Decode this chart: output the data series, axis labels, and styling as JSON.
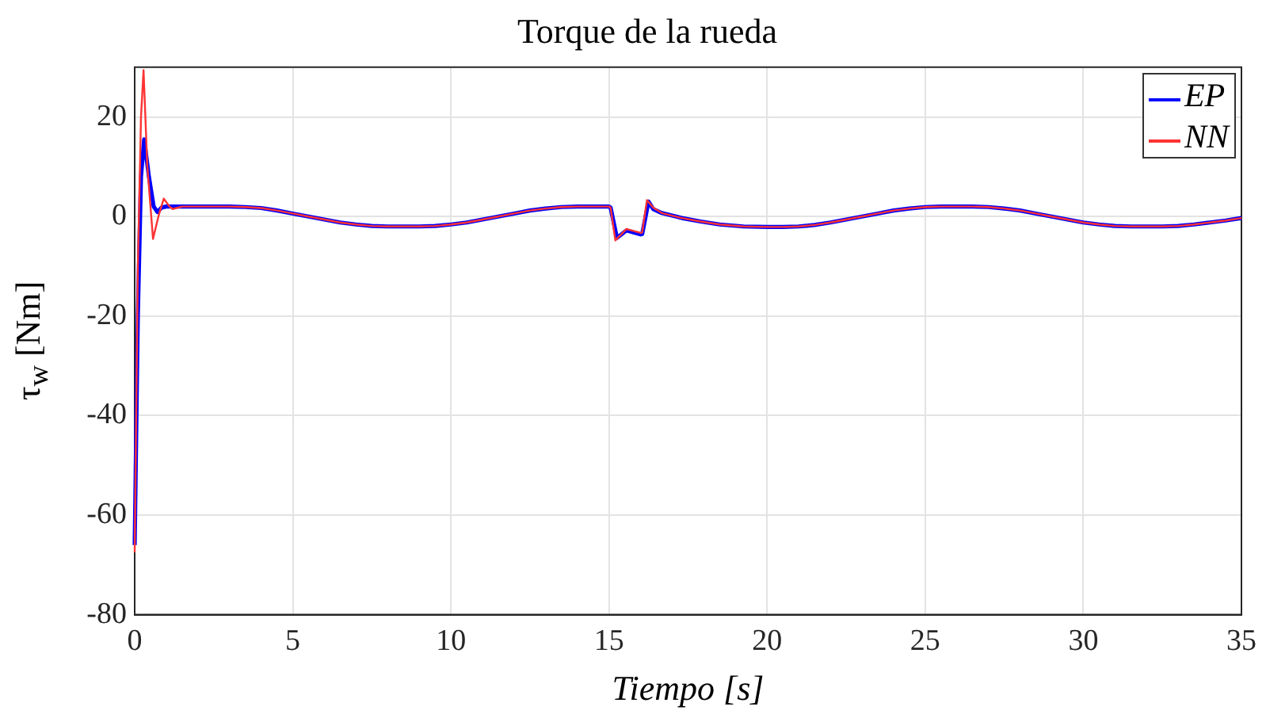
{
  "chart_data": {
    "type": "line",
    "title": "Torque de la rueda",
    "xlabel": "Tiempo [s]",
    "ylabel": "τ$_{w}$ [Nm]",
    "xlim": [
      0,
      35
    ],
    "xticks": [
      0,
      5,
      10,
      15,
      20,
      25,
      30,
      35
    ],
    "ylim": [
      -80,
      30
    ],
    "yticks": [
      -80,
      -60,
      -40,
      -20,
      0,
      20
    ],
    "grid": true,
    "legend": "top right",
    "line_style": "solid",
    "marker": "none",
    "series": [
      {
        "name": "EP",
        "color": "#0000ff",
        "x": [
          0,
          0.1,
          0.2,
          0.3,
          0.45,
          0.6,
          0.72,
          0.85,
          1,
          1.5,
          2,
          2.5,
          3,
          3.5,
          4,
          4.5,
          5,
          5.5,
          6,
          6.5,
          7,
          7.5,
          8,
          8.5,
          9,
          9.5,
          10,
          10.5,
          11,
          11.5,
          12,
          12.5,
          13,
          13.5,
          14,
          14.5,
          15,
          15.05,
          15.25,
          15.55,
          16,
          16.05,
          16.25,
          16.4,
          16.67,
          17.3,
          17.9,
          18.5,
          19.25,
          20,
          20.5,
          21,
          21.5,
          22,
          22.5,
          23,
          23.5,
          24,
          24.5,
          25,
          25.5,
          26,
          26.5,
          27,
          27.5,
          28,
          28.5,
          29,
          29.5,
          30,
          30.5,
          31,
          31.5,
          32,
          32.5,
          33,
          33.5,
          34,
          34.5,
          35
        ],
        "values": [
          -66,
          -20,
          8,
          15.5,
          8,
          2,
          0.9,
          1.8,
          2,
          2,
          2,
          2,
          2,
          1.9,
          1.7,
          1.2,
          0.6,
          0,
          -0.6,
          -1.2,
          -1.6,
          -1.9,
          -2,
          -2,
          -2,
          -1.9,
          -1.6,
          -1.2,
          -0.6,
          0,
          0.6,
          1.2,
          1.6,
          1.9,
          2,
          2,
          2,
          1.8,
          -4.3,
          -2.8,
          -3.6,
          -3.5,
          3,
          1.5,
          0.7,
          -0.3,
          -1,
          -1.6,
          -2,
          -2.1,
          -2.1,
          -2,
          -1.7,
          -1.2,
          -0.6,
          0,
          0.6,
          1.2,
          1.6,
          1.9,
          2,
          2,
          2,
          1.9,
          1.6,
          1.2,
          0.6,
          0,
          -0.6,
          -1.2,
          -1.6,
          -1.9,
          -2,
          -2,
          -2,
          -1.9,
          -1.6,
          -1.2,
          -0.8,
          -0.3
        ]
      },
      {
        "name": "NN",
        "color": "#ff3333",
        "x": [
          0,
          0.1,
          0.2,
          0.28,
          0.4,
          0.58,
          0.75,
          0.92,
          1.1,
          1.2,
          1.5,
          2,
          2.5,
          3,
          3.5,
          4,
          4.5,
          5,
          5.5,
          6,
          6.5,
          7,
          7.5,
          8,
          8.5,
          9,
          9.5,
          10,
          10.5,
          11,
          11.5,
          12,
          12.5,
          13,
          13.5,
          14,
          14.5,
          15,
          15.05,
          15.2,
          15.55,
          16,
          16.05,
          16.2,
          16.4,
          16.67,
          17.3,
          17.9,
          18.5,
          19.25,
          20,
          20.5,
          21,
          21.5,
          22,
          22.5,
          23,
          23.5,
          24,
          24.5,
          25,
          25.5,
          26,
          26.5,
          27,
          27.5,
          28,
          28.5,
          29,
          29.5,
          30,
          30.5,
          31,
          31.5,
          32,
          32.5,
          33,
          33.5,
          34,
          34.5,
          35
        ],
        "values": [
          -67.5,
          -10,
          20,
          29.4,
          10,
          -4.5,
          0,
          3.6,
          2,
          1.5,
          2,
          2,
          2,
          2,
          1.9,
          1.7,
          1.2,
          0.6,
          0,
          -0.6,
          -1.2,
          -1.6,
          -1.9,
          -2,
          -2,
          -2,
          -1.9,
          -1.6,
          -1.2,
          -0.6,
          0,
          0.6,
          1.2,
          1.6,
          1.9,
          2,
          2,
          2,
          1.8,
          -4.8,
          -2.5,
          -3.3,
          -3.2,
          3.3,
          1.8,
          0.7,
          -0.3,
          -1,
          -1.6,
          -2,
          -2.1,
          -2.1,
          -2,
          -1.7,
          -1.2,
          -0.6,
          0,
          0.6,
          1.2,
          1.6,
          1.9,
          2,
          2,
          2,
          1.9,
          1.6,
          1.2,
          0.6,
          0,
          -0.6,
          -1.2,
          -1.6,
          -1.9,
          -2,
          -2,
          -2,
          -1.9,
          -1.6,
          -1.2,
          -0.8,
          -0.3
        ]
      }
    ]
  }
}
